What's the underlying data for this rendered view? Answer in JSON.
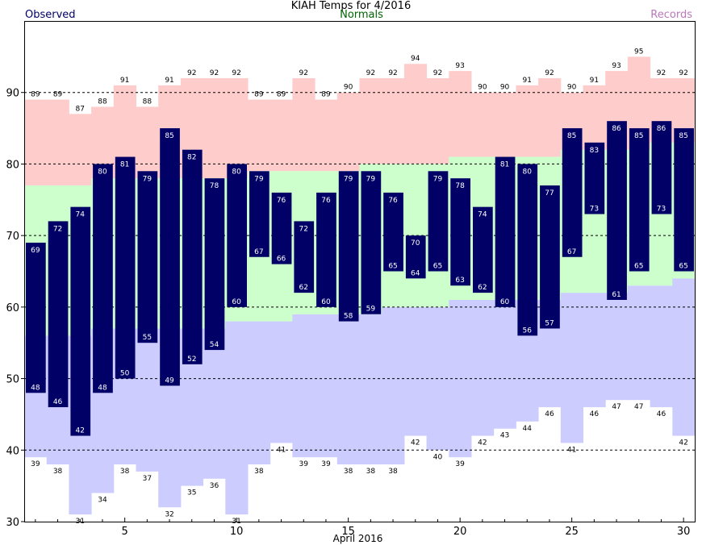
{
  "chart_data": {
    "type": "bar",
    "title": "KIAH Temps for 4/2016",
    "xlabel": "April 2016",
    "ylabel": "",
    "ylim": [
      30,
      100
    ],
    "xlim": [
      0.5,
      30.5
    ],
    "yticks": [
      30,
      40,
      50,
      60,
      70,
      80,
      90
    ],
    "xticks": [
      5,
      10,
      15,
      20,
      25,
      30
    ],
    "grid_lines": [
      40,
      50,
      60,
      70,
      80,
      90
    ],
    "legend": [
      "Observed",
      "Normals",
      "Records"
    ],
    "days": [
      1,
      2,
      3,
      4,
      5,
      6,
      7,
      8,
      9,
      10,
      11,
      12,
      13,
      14,
      15,
      16,
      17,
      18,
      19,
      20,
      21,
      22,
      23,
      24,
      25,
      26,
      27,
      28,
      29,
      30
    ],
    "observed_high": [
      69,
      72,
      74,
      80,
      81,
      79,
      85,
      82,
      78,
      80,
      79,
      76,
      72,
      76,
      79,
      79,
      76,
      70,
      79,
      78,
      74,
      81,
      80,
      77,
      85,
      83,
      86,
      85,
      86,
      85
    ],
    "observed_low": [
      48,
      46,
      42,
      48,
      50,
      55,
      49,
      52,
      54,
      60,
      67,
      66,
      62,
      60,
      58,
      59,
      65,
      64,
      65,
      63,
      62,
      60,
      56,
      57,
      67,
      73,
      61,
      65,
      73,
      65
    ],
    "normal_high": [
      77,
      77,
      77,
      78,
      78,
      78,
      78,
      78,
      78,
      78,
      79,
      79,
      79,
      79,
      79,
      80,
      80,
      80,
      80,
      81,
      81,
      81,
      81,
      81,
      82,
      82,
      82,
      82,
      83,
      83
    ],
    "normal_low": [
      56,
      56,
      56,
      57,
      57,
      57,
      57,
      57,
      57,
      58,
      58,
      58,
      59,
      59,
      59,
      59,
      60,
      60,
      60,
      61,
      61,
      61,
      61,
      61,
      62,
      62,
      62,
      63,
      63,
      64
    ],
    "record_high": [
      89,
      89,
      87,
      88,
      91,
      88,
      91,
      92,
      92,
      92,
      89,
      89,
      92,
      89,
      90,
      92,
      92,
      94,
      92,
      93,
      90,
      90,
      91,
      92,
      90,
      91,
      93,
      95,
      92,
      92
    ],
    "record_low": [
      39,
      38,
      31,
      34,
      38,
      37,
      32,
      35,
      36,
      31,
      38,
      41,
      39,
      39,
      38,
      38,
      38,
      42,
      40,
      39,
      42,
      43,
      44,
      46,
      41,
      46,
      47,
      47,
      46,
      42
    ],
    "colors": {
      "observed": "#000066",
      "normals": "#ccffcc",
      "records_high": "#ffcccc",
      "records_low": "#ccccff",
      "normals_text": "#006600",
      "records_text": "#bb77bb"
    }
  }
}
